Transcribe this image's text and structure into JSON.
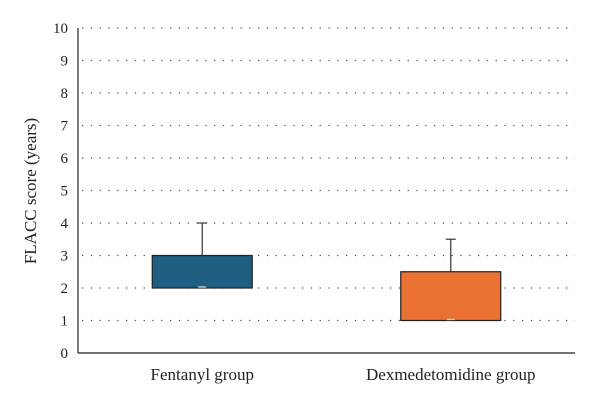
{
  "chart_data": {
    "type": "box",
    "title": "",
    "xlabel": "",
    "ylabel": "FLACC score (years)",
    "ylim": [
      0,
      10
    ],
    "yticks": [
      "0",
      "1",
      "2",
      "3",
      "4",
      "5",
      "6",
      "7",
      "8",
      "9",
      "10"
    ],
    "grid": true,
    "categories": [
      "Fentanyl group",
      "Dexmedetomidine group"
    ],
    "boxes": [
      {
        "category": "Fentanyl group",
        "min": 2,
        "q1": 2,
        "median": 2,
        "q3": 3,
        "max": 4,
        "color": "#1e5f82"
      },
      {
        "category": "Dexmedetomidine group",
        "min": 1,
        "q1": 1,
        "median": 1,
        "q3": 2.5,
        "max": 3.5,
        "color": "#ea7132"
      }
    ]
  }
}
